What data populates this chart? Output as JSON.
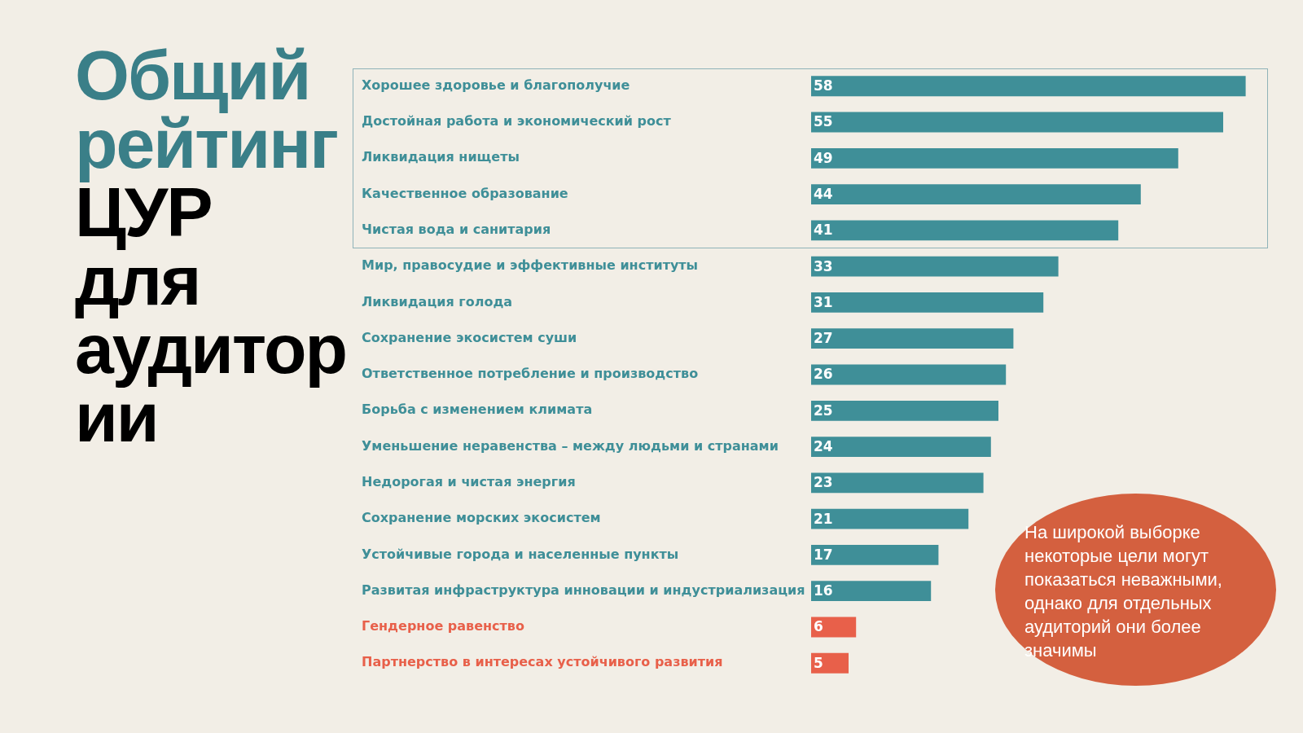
{
  "chart_data": {
    "type": "bar",
    "orientation": "horizontal",
    "title": "Общий рейтинг",
    "subtitle": "ЦУР для аудитории",
    "categories": [
      "Хорошее здоровье и благополучие",
      "Достойная работа и экономический рост",
      "Ликвидация нищеты",
      "Качественное образование",
      "Чистая вода и санитария",
      "Мир, правосудие и эффективные институты",
      "Ликвидация голода",
      "Сохранение экосистем суши",
      "Ответственное потребление и производство",
      "Борьба с изменением климата",
      "Уменьшение неравенства – между людьми и странами",
      "Недорогая и чистая энергия",
      "Сохранение морских экосистем",
      "Устойчивые города и населенные пункты",
      "Развитая инфраструктура инновации и индустриализация",
      "Гендерное равенство",
      "Партнерство в интересах устойчивого развития"
    ],
    "values": [
      58,
      55,
      49,
      44,
      41,
      33,
      31,
      27,
      26,
      25,
      24,
      23,
      21,
      17,
      16,
      6,
      5
    ],
    "colors": [
      "#3f8f98",
      "#3f8f98",
      "#3f8f98",
      "#3f8f98",
      "#3f8f98",
      "#3f8f98",
      "#3f8f98",
      "#3f8f98",
      "#3f8f98",
      "#3f8f98",
      "#3f8f98",
      "#3f8f98",
      "#3f8f98",
      "#3f8f98",
      "#3f8f98",
      "#e8604a",
      "#e8604a"
    ],
    "data_labels": true,
    "annotations": [
      "На широкой выборке некоторые цели могут показаться неважными, однако для отдельных аудиторий они более значимы"
    ]
  }
}
